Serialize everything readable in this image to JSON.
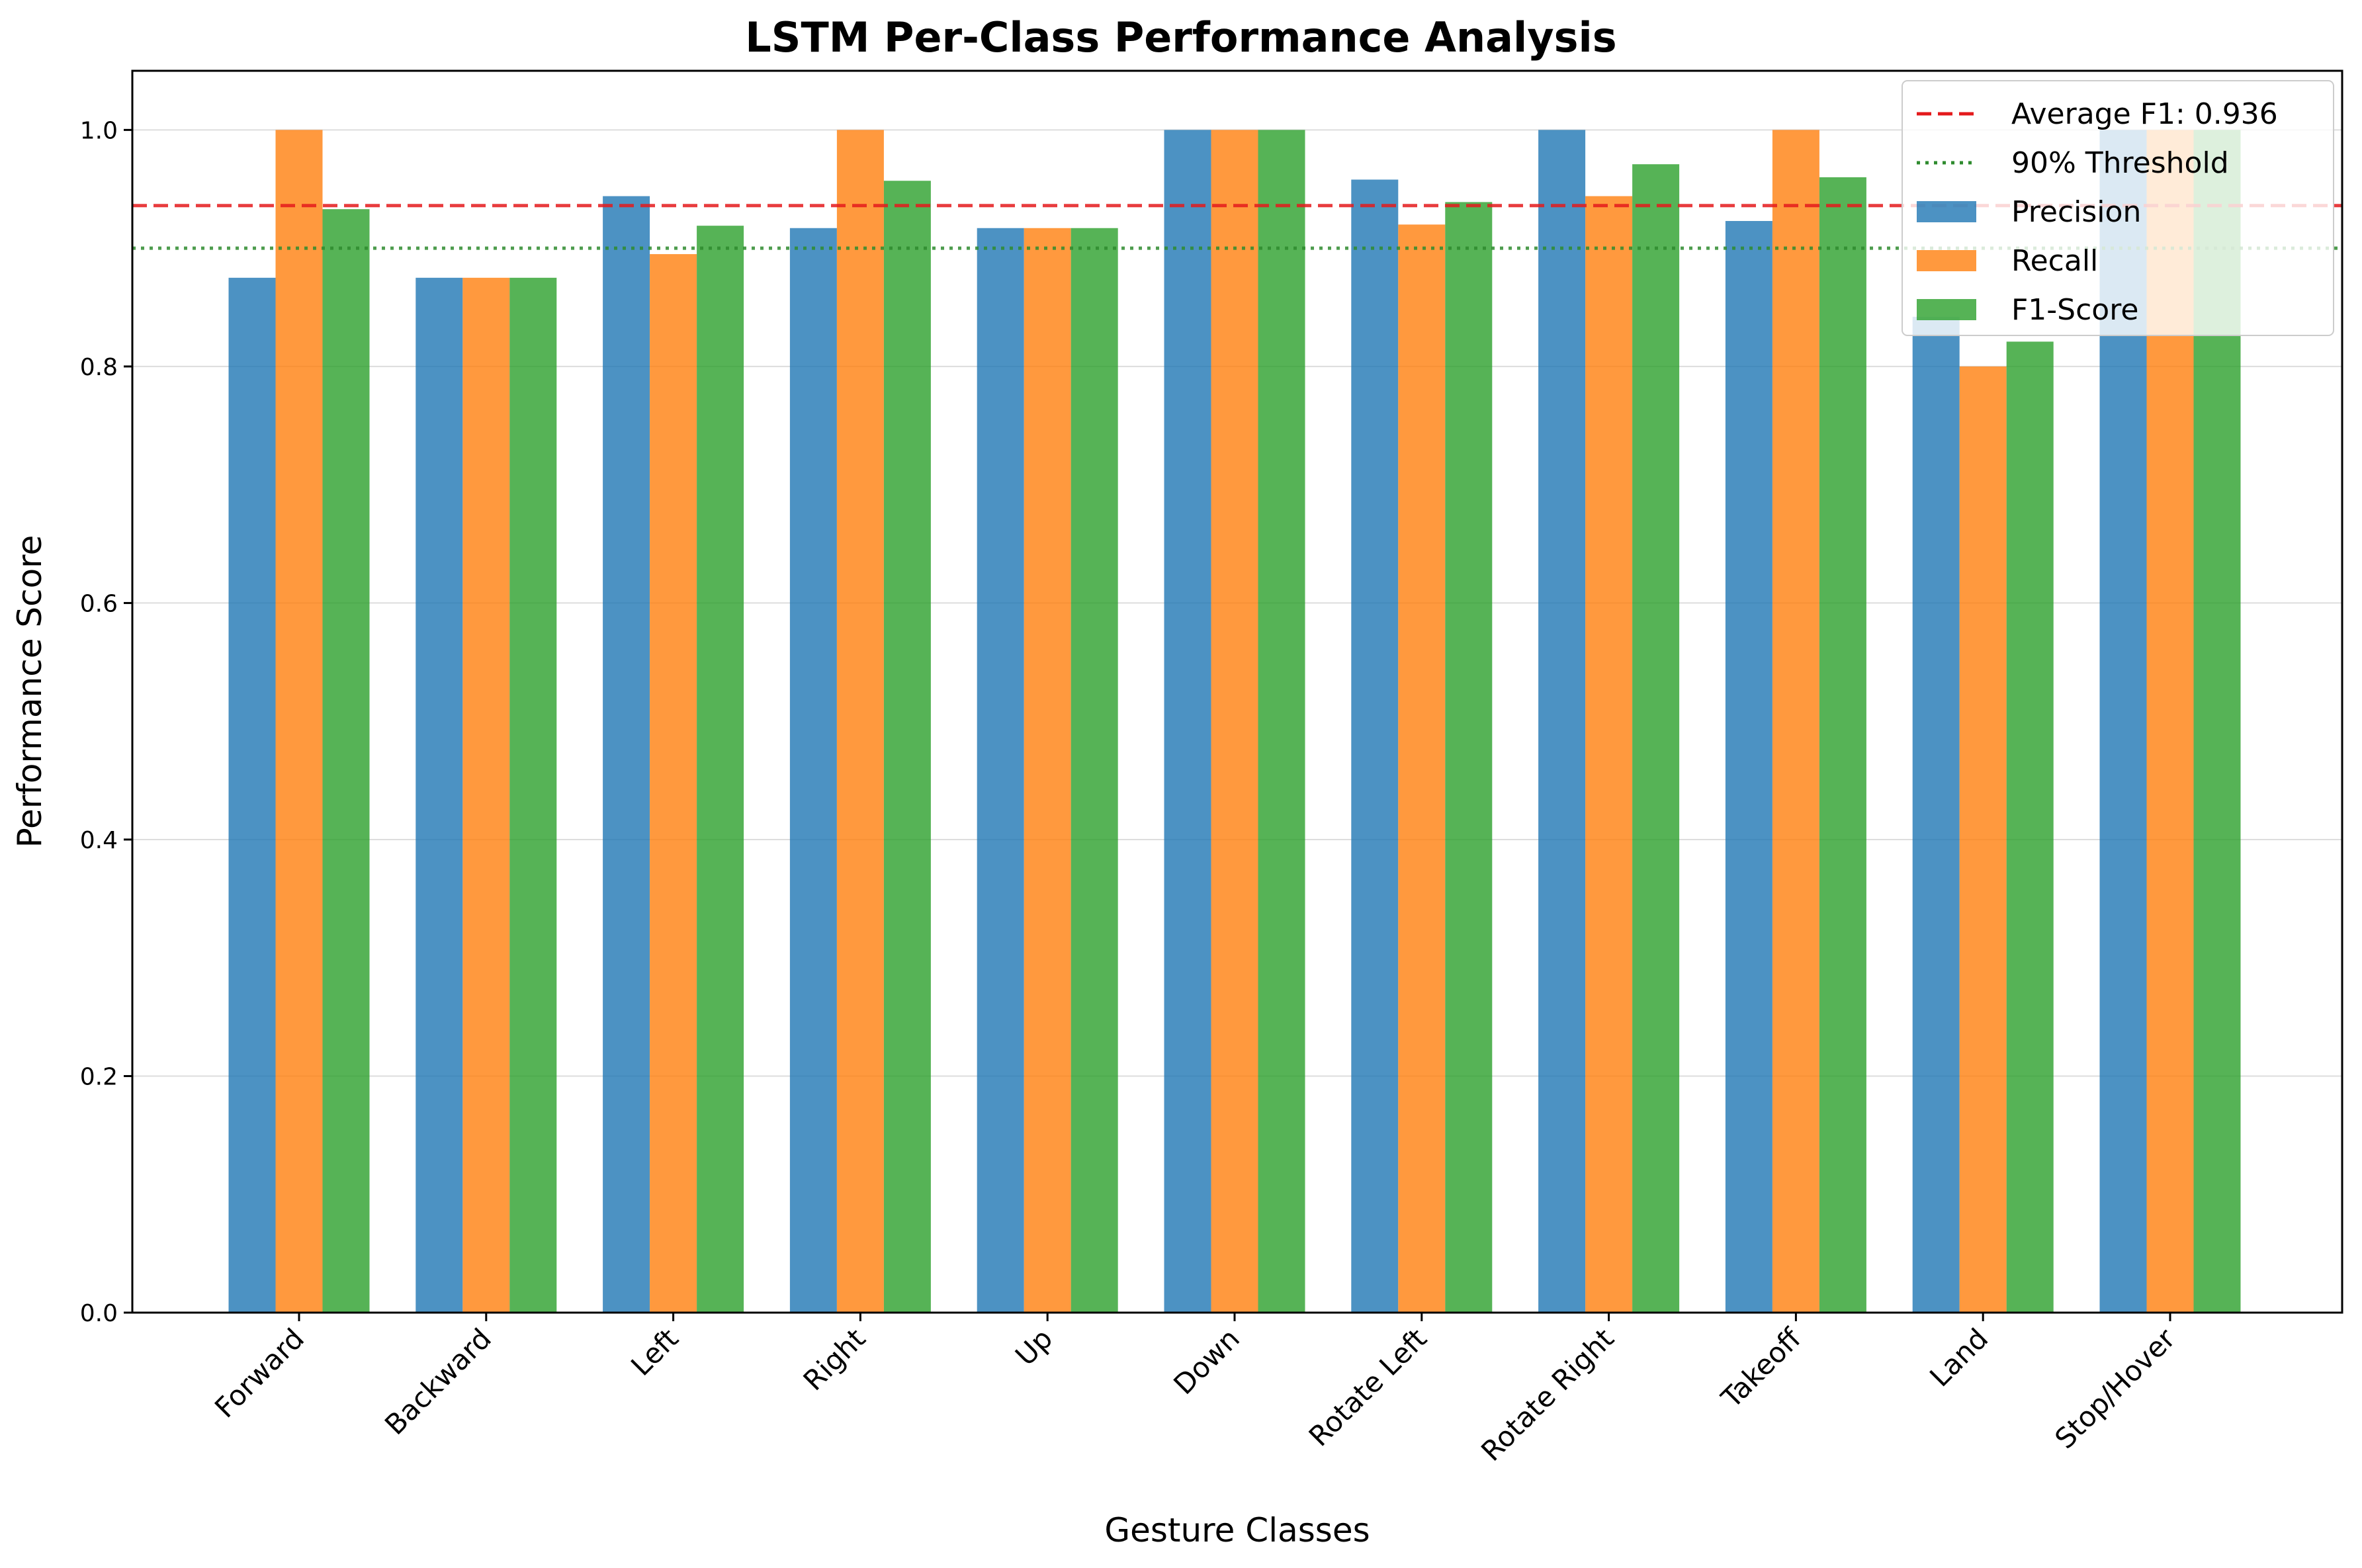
{
  "chart_data": {
    "type": "bar",
    "title": "LSTM Per-Class Performance Analysis",
    "xlabel": "Gesture Classes",
    "ylabel": "Performance Score",
    "ylim": [
      0,
      1.05
    ],
    "yticks": [
      "0.0",
      "0.2",
      "0.4",
      "0.6",
      "0.8",
      "1.0"
    ],
    "ytick_values": [
      0,
      0.2,
      0.4,
      0.6,
      0.8,
      1.0
    ],
    "grid": "horizontal",
    "legend_position": "top-right",
    "categories": [
      "Forward",
      "Backward",
      "Left",
      "Right",
      "Up",
      "Down",
      "Rotate Left",
      "Rotate Right",
      "Takeoff",
      "Land",
      "Stop/Hover"
    ],
    "series": [
      {
        "name": "Precision",
        "color": "#1f77b4",
        "values": [
          0.875,
          0.875,
          0.944,
          0.917,
          0.917,
          1.0,
          0.958,
          1.0,
          0.923,
          0.842,
          1.0
        ]
      },
      {
        "name": "Recall",
        "color": "#ff7f0e",
        "values": [
          1.0,
          0.875,
          0.895,
          1.0,
          0.917,
          1.0,
          0.92,
          0.944,
          1.0,
          0.8,
          1.0
        ]
      },
      {
        "name": "F1-Score",
        "color": "#2ca02c",
        "values": [
          0.933,
          0.875,
          0.919,
          0.957,
          0.917,
          1.0,
          0.939,
          0.971,
          0.96,
          0.821,
          1.0
        ]
      }
    ],
    "reference_lines": [
      {
        "name": "Average F1: 0.936",
        "value": 0.936,
        "color": "#e41a1c",
        "style": "dashed"
      },
      {
        "name": "90% Threshold",
        "value": 0.9,
        "color": "#2e8b2e",
        "style": "dotted"
      }
    ]
  }
}
